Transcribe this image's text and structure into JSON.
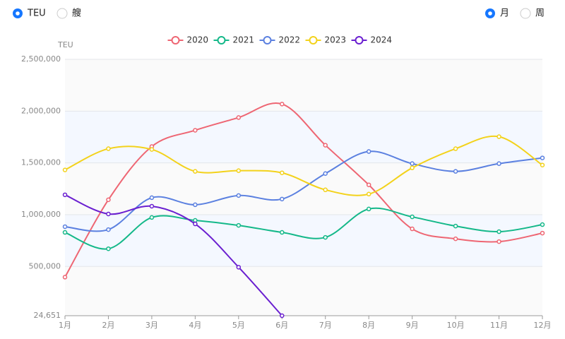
{
  "controls": {
    "unit_options": [
      "TEU",
      "艘"
    ],
    "unit_selected": 0,
    "period_options": [
      "月",
      "周"
    ],
    "period_selected": 0
  },
  "chart_data": {
    "type": "line",
    "smooth": true,
    "y_label": "TEU",
    "categories": [
      "1月",
      "2月",
      "3月",
      "4月",
      "5月",
      "6月",
      "7月",
      "8月",
      "9月",
      "10月",
      "11月",
      "12月"
    ],
    "ylim": [
      24651,
      2500000
    ],
    "yticks": [
      {
        "value": 24651,
        "label": "24,651"
      },
      {
        "value": 500000,
        "label": "500,000"
      },
      {
        "value": 1000000,
        "label": "1,000,000"
      },
      {
        "value": 1500000,
        "label": "1,500,000"
      },
      {
        "value": 2000000,
        "label": "2,000,000"
      },
      {
        "value": 2500000,
        "label": "2,500,000"
      }
    ],
    "grid": true,
    "legend": "top",
    "series": [
      {
        "name": "2020",
        "color": "#ee6673",
        "values": [
          397000,
          1144000,
          1658000,
          1815000,
          1938000,
          2068000,
          1671000,
          1288000,
          863000,
          767000,
          740000,
          822000
        ]
      },
      {
        "name": "2021",
        "color": "#14b889",
        "values": [
          829000,
          671000,
          973000,
          945000,
          897000,
          829000,
          781000,
          1055000,
          979000,
          890000,
          836000,
          904000
        ]
      },
      {
        "name": "2022",
        "color": "#5b80e0",
        "values": [
          884000,
          856000,
          1164000,
          1096000,
          1185000,
          1151000,
          1397000,
          1610000,
          1493000,
          1418000,
          1493000,
          1548000
        ]
      },
      {
        "name": "2023",
        "color": "#f3d21b",
        "values": [
          1432000,
          1637000,
          1630000,
          1418000,
          1425000,
          1404000,
          1240000,
          1199000,
          1452000,
          1637000,
          1753000,
          1479000
        ]
      },
      {
        "name": "2024",
        "color": "#6a1fd0",
        "values": [
          1192000,
          1007000,
          1082000,
          911000,
          493000,
          24651,
          null,
          null,
          null,
          null,
          null,
          null
        ]
      }
    ]
  }
}
